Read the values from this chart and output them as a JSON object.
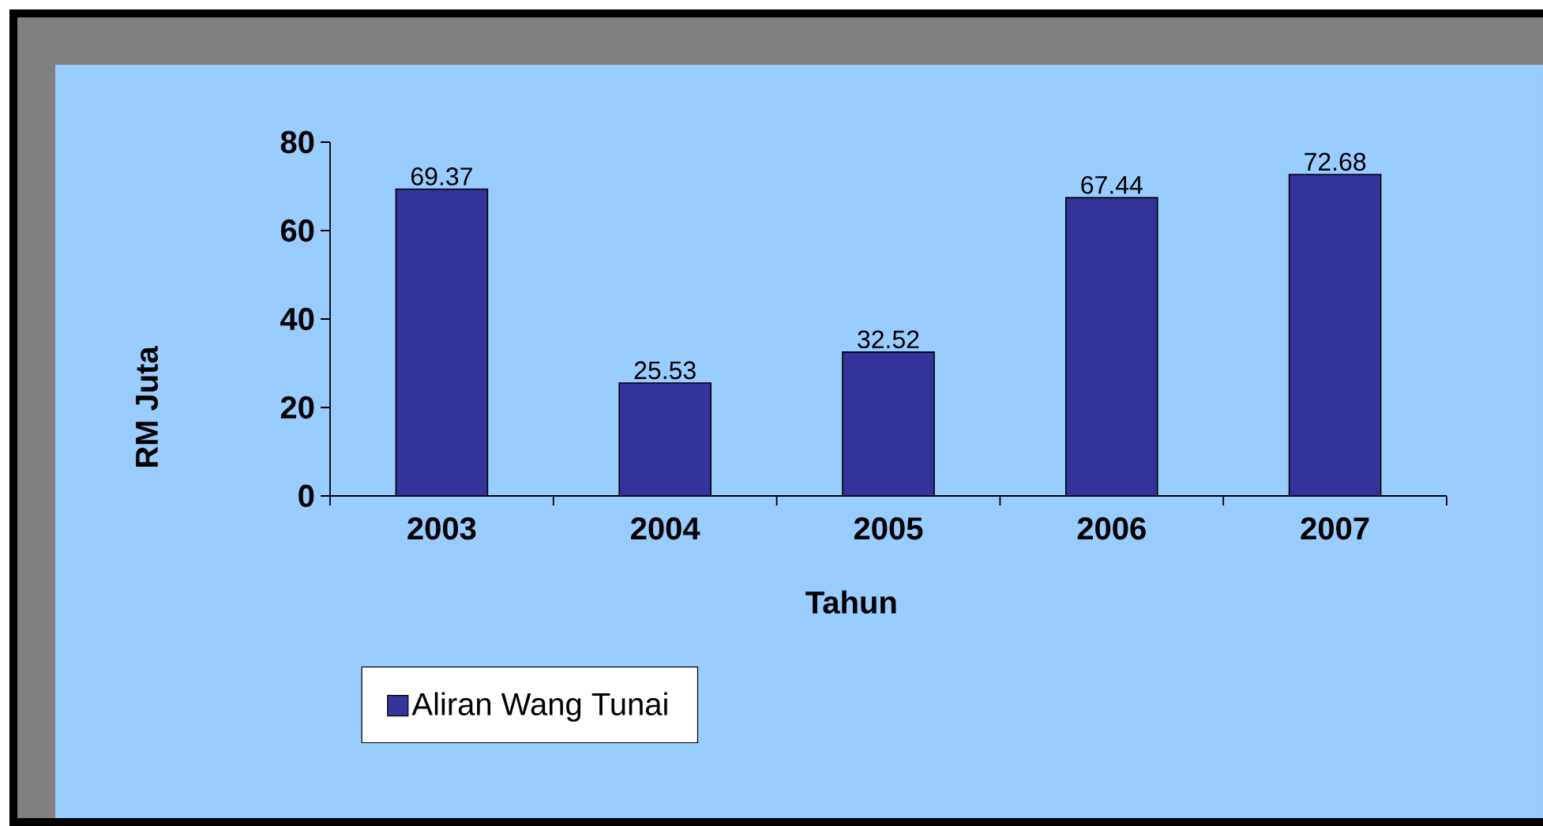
{
  "chart_data": {
    "type": "bar",
    "xlabel": "Tahun",
    "ylabel": "RM Juta",
    "categories": [
      "2003",
      "2004",
      "2005",
      "2006",
      "2007"
    ],
    "series": [
      {
        "name": "Aliran Wang Tunai",
        "color": "#333399",
        "values": [
          69.37,
          25.53,
          32.52,
          67.44,
          72.68
        ]
      }
    ],
    "ylim": [
      0,
      80
    ],
    "yticks": [
      0,
      20,
      40,
      60,
      80
    ],
    "data_labels": true,
    "legend": "bottom left"
  }
}
